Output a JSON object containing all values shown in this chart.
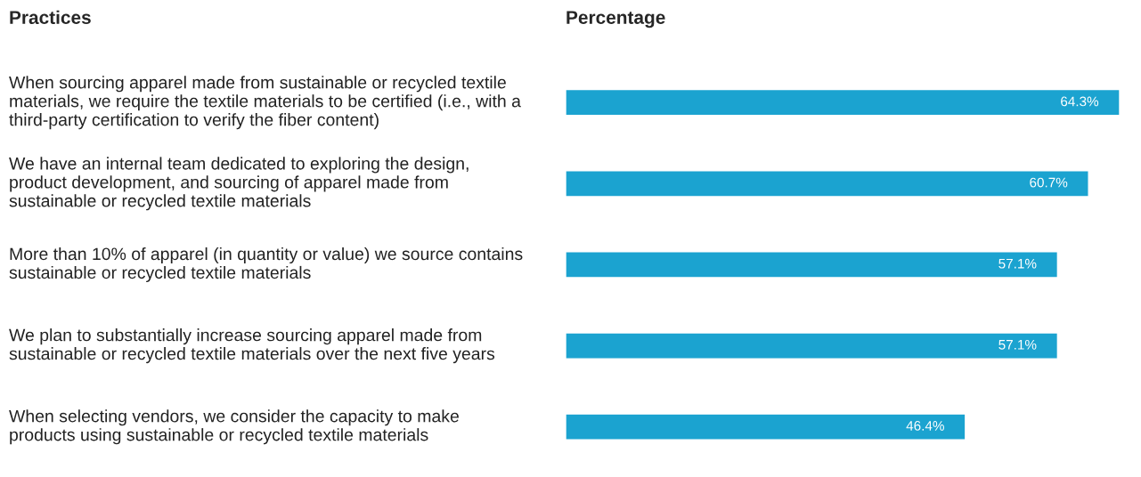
{
  "chart_data": {
    "type": "bar",
    "orientation": "horizontal",
    "ylabel": "Practices",
    "xlabel": "Percentage",
    "categories": [
      "When sourcing apparel made from sustainable or recycled textile materials, we require the textile materials to be certified (i.e., with a third-party certification to verify the fiber content)",
      "We have an internal team dedicated to exploring the design, product development, and sourcing of apparel made from sustainable or recycled textile materials",
      "More than 10% of apparel (in quantity or value) we source contains sustainable or recycled textile materials",
      "We plan to substantially increase sourcing apparel made from sustainable or recycled textile materials over the next five years",
      "When selecting vendors, we consider the capacity to make products using sustainable or recycled textile materials"
    ],
    "values": [
      64.3,
      60.7,
      57.1,
      57.1,
      46.4
    ],
    "value_labels": [
      "64.3%",
      "60.7%",
      "57.1%",
      "57.1%",
      "46.4%"
    ],
    "color": "#1ba3d0",
    "legend": false
  }
}
